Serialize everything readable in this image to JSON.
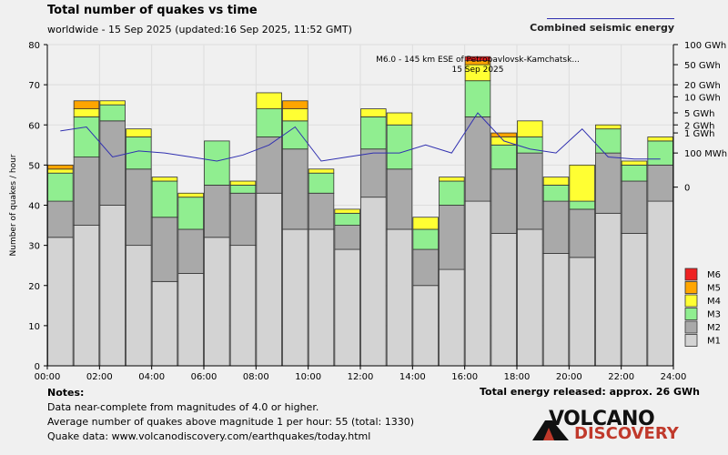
{
  "header": {
    "title": "Total number of quakes vs time",
    "subtitle": "worldwide - 15 Sep 2025 (updated:16 Sep 2025, 11:52 GMT)",
    "energy_legend": "Combined seismic energy"
  },
  "notes": {
    "title": "Notes:",
    "line1": "Data near-complete from magnitudes of 4.0 or higher.",
    "line2": "Average number of quakes above magnitude 1 per hour: 55 (total: 1330)",
    "line3": "Quake data: www.volcanodiscovery.com/earthquakes/today.html"
  },
  "total_energy": "Total energy released: approx. 26 GWh",
  "logo": {
    "line1": "VOLCANO",
    "line2": "DISCOVERY"
  },
  "colors": {
    "M1": "#d3d3d3",
    "M2": "#a9a9a9",
    "M3": "#90ee90",
    "M4": "#ffff33",
    "M5": "#ffa500",
    "M6": "#ee2222",
    "energy_line": "#3030b0",
    "plot_bg": "#f0f0f0",
    "grid": "#dddddd"
  },
  "chart_data": {
    "type": "bar",
    "stacked": true,
    "xlabel": "",
    "ylabel": "Number of quakes / hour",
    "ylim": [
      0,
      80
    ],
    "y_ticks": [
      0,
      10,
      20,
      30,
      40,
      50,
      60,
      70,
      80
    ],
    "x_ticks": [
      "00:00",
      "02:00",
      "04:00",
      "06:00",
      "08:00",
      "10:00",
      "12:00",
      "14:00",
      "16:00",
      "18:00",
      "20:00",
      "22:00",
      "24:00"
    ],
    "categories": [
      "00",
      "01",
      "02",
      "03",
      "04",
      "05",
      "06",
      "07",
      "08",
      "09",
      "10",
      "11",
      "12",
      "13",
      "14",
      "15",
      "16",
      "17",
      "18",
      "19",
      "20",
      "21",
      "22",
      "23"
    ],
    "series": [
      {
        "name": "M1",
        "values": [
          32,
          35,
          40,
          30,
          21,
          23,
          32,
          30,
          43,
          34,
          34,
          29,
          42,
          34,
          20,
          24,
          41,
          33,
          34,
          28,
          27,
          38,
          33,
          41
        ]
      },
      {
        "name": "M2",
        "values": [
          9,
          17,
          21,
          19,
          16,
          11,
          13,
          13,
          14,
          20,
          9,
          6,
          12,
          15,
          9,
          16,
          21,
          16,
          19,
          13,
          12,
          15,
          13,
          9
        ]
      },
      {
        "name": "M3",
        "values": [
          7,
          10,
          4,
          8,
          9,
          8,
          11,
          2,
          7,
          7,
          5,
          3,
          8,
          11,
          5,
          6,
          9,
          6,
          4,
          4,
          2,
          6,
          4,
          6
        ]
      },
      {
        "name": "M4",
        "values": [
          1,
          2,
          1,
          2,
          1,
          1,
          0,
          1,
          4,
          3,
          1,
          1,
          2,
          3,
          3,
          1,
          4,
          2,
          4,
          2,
          9,
          1,
          1,
          1
        ]
      },
      {
        "name": "M5",
        "values": [
          1,
          2,
          0,
          0,
          0,
          0,
          0,
          0,
          0,
          2,
          0,
          0,
          0,
          0,
          0,
          0,
          1,
          1,
          0,
          0,
          0,
          0,
          0,
          0
        ]
      },
      {
        "name": "M6",
        "values": [
          0,
          0,
          0,
          0,
          0,
          0,
          0,
          0,
          0,
          0,
          0,
          0,
          0,
          0,
          0,
          0,
          1,
          0,
          0,
          0,
          0,
          0,
          0,
          0
        ]
      }
    ],
    "legend": [
      "M6",
      "M5",
      "M4",
      "M3",
      "M2",
      "M1"
    ],
    "legend_position": "bottom-right",
    "energy_axis": {
      "label": "Combined seismic energy",
      "ticks": [
        "100 GWh",
        "50 GWh",
        "20 GWh",
        "10 GWh",
        "5 GWh",
        "2 GWh",
        "1 GWh",
        "100 MWh",
        "0"
      ],
      "tick_y": [
        80,
        75,
        70,
        67,
        63,
        60,
        58,
        53,
        44.5
      ]
    },
    "energy_series": [
      58.5,
      59.5,
      52,
      53.5,
      53,
      52,
      51,
      52.5,
      55,
      59.5,
      51,
      52,
      53,
      53,
      55,
      53,
      63,
      56,
      54,
      53,
      59,
      52,
      51.5,
      51.5
    ],
    "annotation": {
      "line1": "M6.0 - 145 km ESE of Petropavlovsk-Kamchatsk...",
      "line2": "15 Sep 2025",
      "hour_index": 16
    }
  }
}
